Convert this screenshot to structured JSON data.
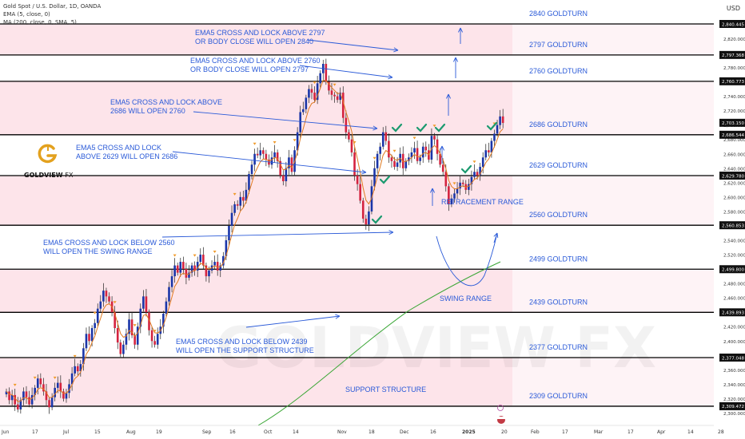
{
  "header": {
    "title": "Gold Spot / U.S. Dollar, 1D, OANDA",
    "ema": "EMA (5, close, 0)",
    "ma": "MA (200, close, 0, SMA, 5)",
    "currency": "USD"
  },
  "logo": {
    "brand": "GOLDVIEW",
    "suffix": "FX",
    "watermark": "GOLDVIEW FX"
  },
  "colors": {
    "band": "#fde4ea",
    "band_alt": "#ffeef2",
    "candle_up": "#1a35a8",
    "candle_down": "#d4233f",
    "ema": "#e07a20",
    "ma200": "#3aa635",
    "annotation": "#2a5ad8",
    "check": "#1b9a6f",
    "fractal": "#f09a2a",
    "level_line": "#000000"
  },
  "chart_data": {
    "type": "candlestick",
    "title": "Gold Spot / U.S. Dollar, 1D, OANDA",
    "ylim": [
      2290,
      2855
    ],
    "x_tick_labels": [
      "Jun",
      "17",
      "Jul",
      "15",
      "Aug",
      "19",
      "Sep",
      "16",
      "Oct",
      "14",
      "Nov",
      "18",
      "Dec",
      "16",
      "2025",
      "20",
      "Feb",
      "17",
      "Mar",
      "17",
      "Apr",
      "14",
      "28"
    ],
    "levels": [
      {
        "value": 2840.445,
        "price_label": "2,840.445",
        "label": "2840 GOLDTURN"
      },
      {
        "value": 2797.368,
        "price_label": "2,797.368",
        "label": "2797 GOLDTURN"
      },
      {
        "value": 2760.773,
        "price_label": "2,760.773",
        "label": "2760 GOLDTURN"
      },
      {
        "value": 2686.544,
        "price_label": "2,686.544",
        "label": "2686 GOLDTURN"
      },
      {
        "value": 2629.78,
        "price_label": "2,629.780",
        "label": "2629 GOLDTURN"
      },
      {
        "value": 2560.853,
        "price_label": "2,560.853",
        "label": "2560 GOLDTURN"
      },
      {
        "value": 2499.8,
        "price_label": "2,499.800",
        "label": "2499 GOLDTURN"
      },
      {
        "value": 2439.893,
        "price_label": "2,439.893",
        "label": "2439 GOLDTURN"
      },
      {
        "value": 2377.048,
        "price_label": "2,377.048",
        "label": "2377 GOLDTURN"
      },
      {
        "value": 2309.472,
        "price_label": "2,309.472",
        "label": "2309 GOLDTURN"
      }
    ],
    "current_price": {
      "value": 2703.15,
      "label": "2,703.150"
    },
    "y_tick_labels": [
      "2,820.000",
      "2,780.000",
      "2,740.000",
      "2,720.000",
      "2,700.000",
      "2,680.000",
      "2,660.000",
      "2,640.000",
      "2,620.000",
      "2,600.000",
      "2,580.000",
      "2,540.000",
      "2,520.000",
      "2,480.000",
      "2,460.000",
      "2,420.000",
      "2,400.000",
      "2,360.000",
      "2,340.000",
      "2,320.000",
      "2,300.000"
    ],
    "annotations": [
      {
        "lines": [
          "EMA5 CROSS AND LOCK ABOVE 2797",
          "OR BODY CLOSE WILL OPEN 2840"
        ]
      },
      {
        "lines": [
          "EMA5 CROSS AND LOCK ABOVE 2760",
          "OR BODY CLOSE WILL OPEN 2797"
        ]
      },
      {
        "lines": [
          "EMA5 CROSS AND LOCK ABOVE",
          "2686 WILL OPEN 2760"
        ]
      },
      {
        "lines": [
          "EMA5 CROSS AND LOCK",
          "ABOVE 2629 WILL OPEN 2686"
        ]
      },
      {
        "lines": [
          "EMA5 CROSS AND LOCK BELOW 2560",
          "WILL OPEN THE SWING RANGE"
        ]
      },
      {
        "lines": [
          "EMA5 CROSS AND LOCK BELOW 2439",
          "WILL OPEN THE SUPPORT STRUCTURE"
        ]
      }
    ],
    "range_labels": [
      "RETRACEMENT RANGE",
      "SWING RANGE",
      "SUPPORT STRUCTURE"
    ],
    "closes": [
      2330,
      2318,
      2325,
      2312,
      2305,
      2318,
      2330,
      2322,
      2312,
      2325,
      2335,
      2348,
      2340,
      2330,
      2318,
      2308,
      2322,
      2335,
      2342,
      2330,
      2320,
      2328,
      2340,
      2355,
      2365,
      2358,
      2368,
      2390,
      2410,
      2400,
      2418,
      2425,
      2445,
      2455,
      2470,
      2462,
      2455,
      2440,
      2418,
      2398,
      2382,
      2395,
      2410,
      2430,
      2408,
      2395,
      2420,
      2445,
      2462,
      2440,
      2415,
      2400,
      2395,
      2410,
      2420,
      2438,
      2455,
      2475,
      2490,
      2505,
      2495,
      2510,
      2500,
      2488,
      2495,
      2505,
      2498,
      2510,
      2520,
      2505,
      2490,
      2498,
      2505,
      2510,
      2498,
      2505,
      2518,
      2540,
      2560,
      2578,
      2590,
      2588,
      2600,
      2595,
      2610,
      2632,
      2645,
      2660,
      2658,
      2665,
      2660,
      2652,
      2645,
      2655,
      2662,
      2650,
      2630,
      2622,
      2640,
      2655,
      2635,
      2665,
      2690,
      2718,
      2722,
      2738,
      2750,
      2745,
      2735,
      2758,
      2772,
      2785,
      2760,
      2748,
      2742,
      2740,
      2735,
      2745,
      2710,
      2690,
      2680,
      2662,
      2630,
      2618,
      2595,
      2570,
      2562,
      2580,
      2615,
      2640,
      2660,
      2670,
      2690,
      2678,
      2655,
      2650,
      2642,
      2648,
      2660,
      2640,
      2650,
      2655,
      2662,
      2668,
      2650,
      2655,
      2670,
      2665,
      2652,
      2685,
      2680,
      2660,
      2645,
      2635,
      2615,
      2590,
      2598,
      2605,
      2612,
      2620,
      2618,
      2610,
      2618,
      2628,
      2635,
      2630,
      2642,
      2655,
      2665,
      2662,
      2678,
      2688,
      2700,
      2712,
      2703
    ]
  }
}
